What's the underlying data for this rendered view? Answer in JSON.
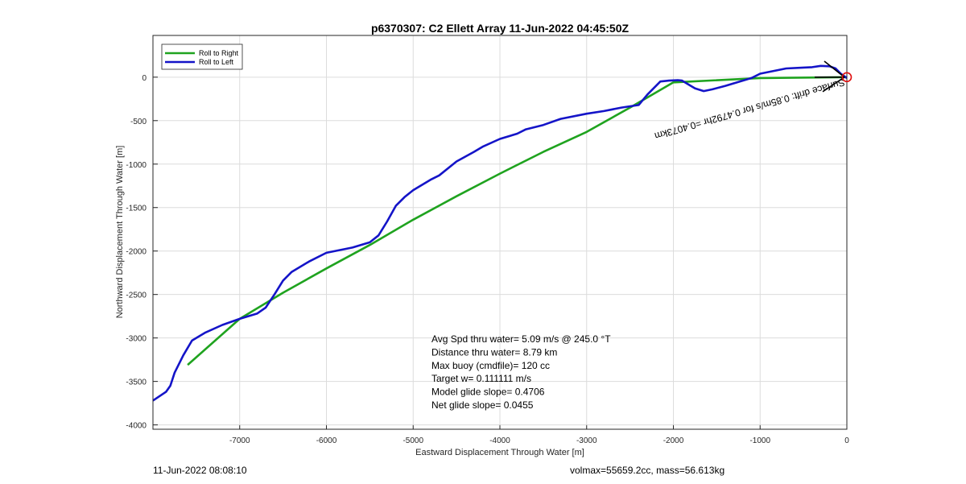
{
  "chart_data": {
    "type": "line",
    "title": "p6370307: C2 Ellett Array 11-Jun-2022 04:45:50Z",
    "xlabel": "Eastward Displacement Through Water [m]",
    "ylabel": "Northward Displacement Through Water [m]",
    "xlim": [
      -8000,
      0
    ],
    "ylim": [
      -4050,
      480
    ],
    "xticks": [
      -7000,
      -6000,
      -5000,
      -4000,
      -3000,
      -2000,
      -1000,
      0
    ],
    "yticks": [
      0,
      -500,
      -1000,
      -1500,
      -2000,
      -2500,
      -3000,
      -3500,
      -4000
    ],
    "grid": true,
    "legend_position": "top-left",
    "series": [
      {
        "name": "Roll to Right",
        "color": "#1fa31f",
        "points": [
          [
            0,
            0
          ],
          [
            -1000,
            -10
          ],
          [
            -2000,
            -60
          ],
          [
            -2500,
            -350
          ],
          [
            -3000,
            -630
          ],
          [
            -3500,
            -860
          ],
          [
            -4000,
            -1110
          ],
          [
            -4500,
            -1370
          ],
          [
            -5000,
            -1640
          ],
          [
            -5500,
            -1930
          ],
          [
            -6000,
            -2200
          ],
          [
            -6500,
            -2480
          ],
          [
            -7000,
            -2780
          ],
          [
            -7600,
            -3310
          ]
        ]
      },
      {
        "name": "Roll to Left",
        "color": "#1414c8",
        "points": [
          [
            0,
            -10
          ],
          [
            -70,
            40
          ],
          [
            -130,
            100
          ],
          [
            -200,
            125
          ],
          [
            -300,
            130
          ],
          [
            -400,
            115
          ],
          [
            -500,
            110
          ],
          [
            -700,
            100
          ],
          [
            -1000,
            40
          ],
          [
            -1100,
            -10
          ],
          [
            -1400,
            -100
          ],
          [
            -1550,
            -140
          ],
          [
            -1650,
            -160
          ],
          [
            -1750,
            -130
          ],
          [
            -1800,
            -100
          ],
          [
            -1900,
            -40
          ],
          [
            -1950,
            -35
          ],
          [
            -2050,
            -40
          ],
          [
            -2150,
            -50
          ],
          [
            -2300,
            -200
          ],
          [
            -2400,
            -320
          ],
          [
            -2600,
            -350
          ],
          [
            -2800,
            -390
          ],
          [
            -3000,
            -420
          ],
          [
            -3300,
            -480
          ],
          [
            -3500,
            -550
          ],
          [
            -3700,
            -600
          ],
          [
            -3800,
            -650
          ],
          [
            -4000,
            -710
          ],
          [
            -4200,
            -800
          ],
          [
            -4300,
            -860
          ],
          [
            -4500,
            -970
          ],
          [
            -4700,
            -1130
          ],
          [
            -4800,
            -1180
          ],
          [
            -5000,
            -1300
          ],
          [
            -5100,
            -1380
          ],
          [
            -5200,
            -1480
          ],
          [
            -5300,
            -1660
          ],
          [
            -5400,
            -1820
          ],
          [
            -5500,
            -1900
          ],
          [
            -5700,
            -1960
          ],
          [
            -6000,
            -2020
          ],
          [
            -6200,
            -2120
          ],
          [
            -6400,
            -2240
          ],
          [
            -6500,
            -2340
          ],
          [
            -6600,
            -2500
          ],
          [
            -6700,
            -2650
          ],
          [
            -6800,
            -2720
          ],
          [
            -7000,
            -2780
          ],
          [
            -7200,
            -2850
          ],
          [
            -7400,
            -2940
          ],
          [
            -7550,
            -3030
          ],
          [
            -7650,
            -3200
          ],
          [
            -7750,
            -3400
          ],
          [
            -7800,
            -3550
          ],
          [
            -7850,
            -3620
          ],
          [
            -8000,
            -3720
          ]
        ]
      }
    ],
    "annotations": [
      "Avg Spd thru water=  5.09 m/s @ 245.0 °T",
      "Distance thru water=  8.79 km",
      "Max buoy (cmdfile)= 120 cc",
      "Target w= 0.111111 m/s",
      "Model glide slope= 0.4706",
      "Net glide slope= 0.0455"
    ],
    "rotated_label": "Surface drift: 0.85m/s for 0.4792hr =0.4073km",
    "marker": "red circle at origin"
  },
  "footer": {
    "left": "11-Jun-2022 08:08:10",
    "right": "volmax=55659.2cc, mass=56.613kg"
  }
}
